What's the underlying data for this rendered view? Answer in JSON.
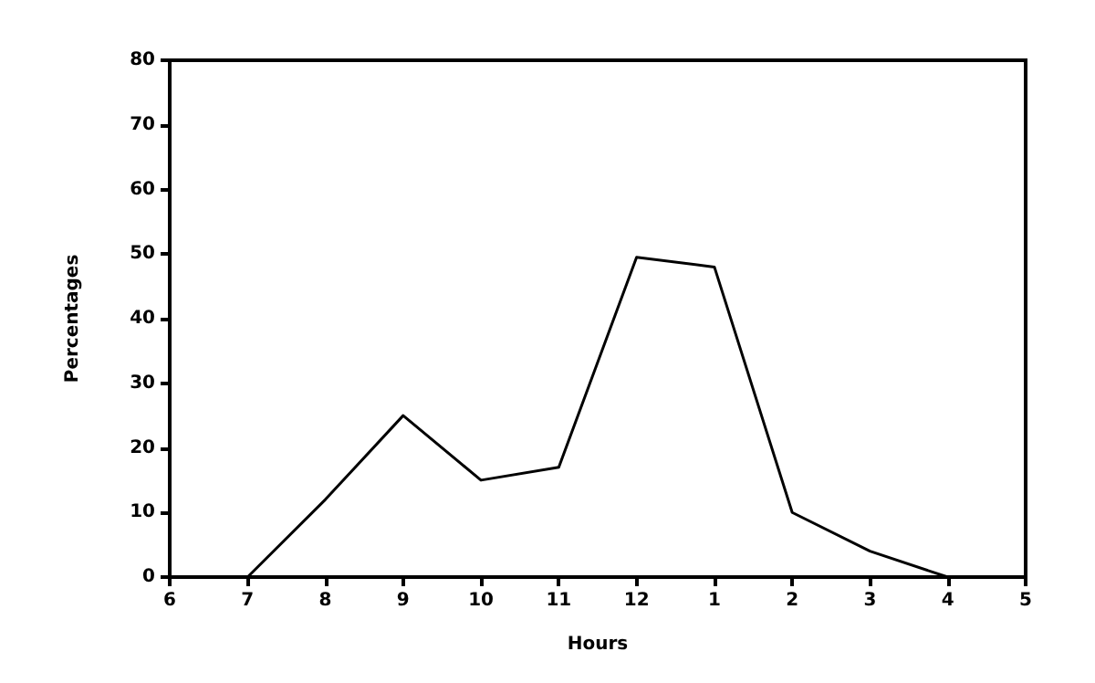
{
  "chart_data": {
    "type": "line",
    "xlabel": "Hours",
    "ylabel": "Percentages",
    "categories": [
      "6",
      "7",
      "8",
      "9",
      "10",
      "11",
      "12",
      "1",
      "2",
      "3",
      "4",
      "5"
    ],
    "series": [
      {
        "color": "#000000",
        "values": [
          0,
          0,
          12,
          25,
          15,
          17,
          49.5,
          48,
          10,
          4,
          0,
          null
        ]
      }
    ],
    "ylim": [
      0,
      80
    ],
    "yticks": [
      0,
      10,
      20,
      30,
      40,
      50,
      60,
      70,
      80
    ],
    "marker": "none",
    "line_style": "solid"
  }
}
